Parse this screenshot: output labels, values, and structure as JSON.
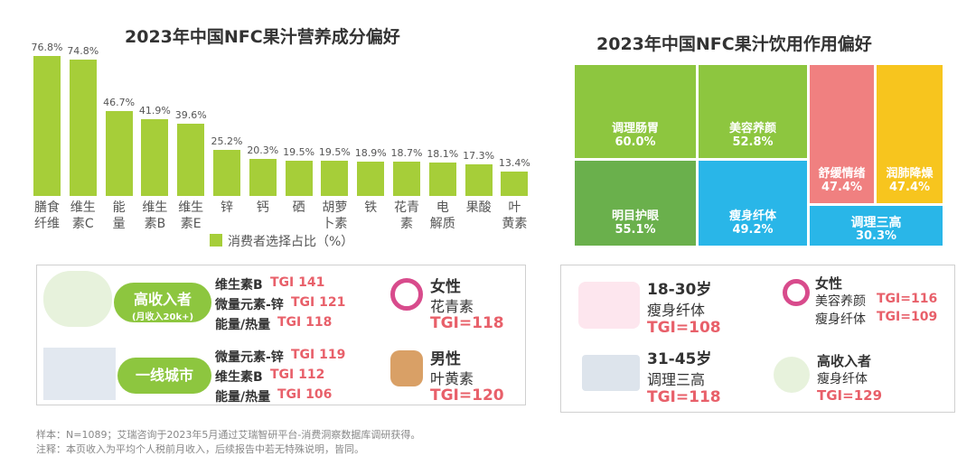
{
  "chart_data": [
    {
      "type": "bar",
      "title": "2023年中国NFC果汁营养成分偏好",
      "categories": [
        "膳食\n纤维",
        "维生\n素C",
        "能\n量",
        "维生\n素B",
        "维生\n素E",
        "锌",
        "钙",
        "硒",
        "胡萝\n卜素",
        "铁",
        "花青\n素",
        "电\n解质",
        "果酸",
        "叶\n黄素"
      ],
      "values": [
        76.8,
        74.8,
        46.7,
        41.9,
        39.6,
        25.2,
        20.3,
        19.5,
        19.5,
        18.9,
        18.7,
        18.1,
        17.3,
        13.4
      ],
      "value_labels": [
        "76.8%",
        "74.8%",
        "46.7%",
        "41.9%",
        "39.6%",
        "25.2%",
        "20.3%",
        "19.5%",
        "19.5%",
        "18.9%",
        "18.7%",
        "18.1%",
        "17.3%",
        "13.4%"
      ],
      "color": "#a6ce39",
      "legend": "消费者选择占比（%）"
    },
    {
      "type": "treemap",
      "title": "2023年中国NFC果汁饮用作用偏好",
      "categories": [
        "调理肠胃",
        "美容养颜",
        "舒缓情绪",
        "润肺降燥",
        "明目护眼",
        "瘦身纤体",
        "调理三高"
      ],
      "values": [
        60.0,
        52.8,
        47.4,
        47.4,
        55.1,
        49.2,
        30.3
      ],
      "value_labels": [
        "60.0%",
        "52.8%",
        "47.4%",
        "47.4%",
        "55.1%",
        "49.2%",
        "30.3%"
      ],
      "colors": [
        "#8dc63f",
        "#8dc63f",
        "#f08080",
        "#f7c51e",
        "#6ab04c",
        "#29b6e8",
        "#29b6e8"
      ]
    }
  ],
  "panels": {
    "left": [
      {
        "tag": "高收入者",
        "sub": "(月收入20k+)",
        "items": [
          {
            "name": "维生素B",
            "tgi": "TGI 141"
          },
          {
            "name": "微量元素-锌",
            "tgi": "TGI 121"
          },
          {
            "name": "能量/热量",
            "tgi": "TGI 118"
          }
        ],
        "gender": "女性",
        "pick": "花青素",
        "tgi": "TGI=118"
      },
      {
        "tag": "一线城市",
        "items": [
          {
            "name": "微量元素-锌",
            "tgi": "TGI 119"
          },
          {
            "name": "维生素B",
            "tgi": "TGI 112"
          },
          {
            "name": "能量/热量",
            "tgi": "TGI 106"
          }
        ],
        "gender": "男性",
        "pick": "叶黄素",
        "tgi": "TGI=120"
      }
    ],
    "right": {
      "age": [
        {
          "group": "18-30岁",
          "pick": "瘦身纤体",
          "tgi": "TGI=108"
        },
        {
          "group": "31-45岁",
          "pick": "调理三高",
          "tgi": "TGI=118"
        }
      ],
      "female": {
        "group": "女性",
        "items": [
          {
            "name": "美容养颜",
            "tgi": "TGI=116"
          },
          {
            "name": "瘦身纤体",
            "tgi": "TGI=109"
          }
        ]
      },
      "income": {
        "group": "高收入者",
        "pick": "瘦身纤体",
        "tgi": "TGI=129"
      }
    }
  },
  "notes": [
    "样本：N=1089；艾瑞咨询于2023年5月通过艾瑞智研平台-消费洞察数据库调研获得。",
    "注释：本页收入为平均个人税前月收入，后续报告中若无特殊说明，皆同。"
  ]
}
